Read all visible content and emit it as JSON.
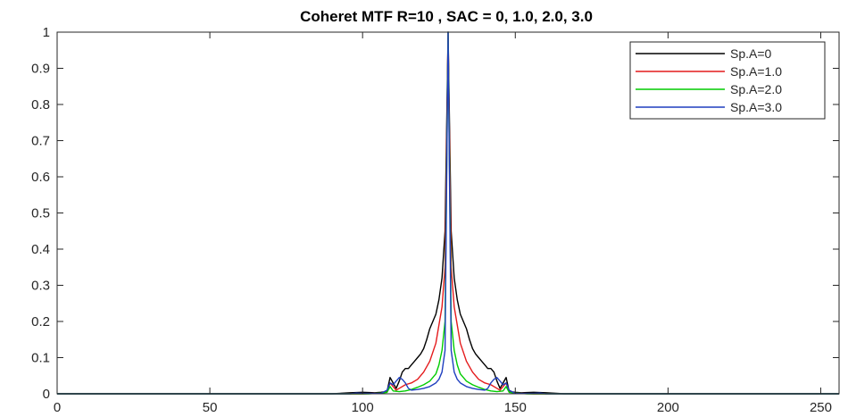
{
  "chart_data": {
    "type": "line",
    "title": "Coheret MTF R=10 , SAC = 0, 1.0, 2.0, 3.0",
    "xlabel": "",
    "ylabel": "",
    "xlim": [
      0,
      256
    ],
    "ylim": [
      0,
      1
    ],
    "xticks": [
      0,
      50,
      100,
      150,
      200,
      250
    ],
    "yticks": [
      0,
      0.1,
      0.2,
      0.3,
      0.4,
      0.5,
      0.6,
      0.7,
      0.8,
      0.9,
      1
    ],
    "xtick_labels": [
      "0",
      "50",
      "100",
      "150",
      "200",
      "250"
    ],
    "ytick_labels": [
      "0",
      "0.1",
      "0.2",
      "0.3",
      "0.4",
      "0.5",
      "0.6",
      "0.7",
      "0.8",
      "0.9",
      "1"
    ],
    "grid": false,
    "legend_position": "top-right",
    "series": [
      {
        "name": "Sp.A=0",
        "color": "#000000",
        "points": [
          [
            0,
            0
          ],
          [
            90,
            0
          ],
          [
            96,
            0.003
          ],
          [
            100,
            0.004
          ],
          [
            104,
            0.003
          ],
          [
            106,
            0.004
          ],
          [
            108,
            0.006
          ],
          [
            109,
            0.045
          ],
          [
            110,
            0.03
          ],
          [
            111,
            0.015
          ],
          [
            112,
            0.035
          ],
          [
            113,
            0.06
          ],
          [
            114,
            0.07
          ],
          [
            115,
            0.07
          ],
          [
            116,
            0.08
          ],
          [
            117,
            0.09
          ],
          [
            118,
            0.1
          ],
          [
            119,
            0.11
          ],
          [
            120,
            0.125
          ],
          [
            121,
            0.15
          ],
          [
            122,
            0.18
          ],
          [
            123,
            0.2
          ],
          [
            124,
            0.22
          ],
          [
            125,
            0.26
          ],
          [
            126,
            0.32
          ],
          [
            127,
            0.45
          ],
          [
            128,
            1.0
          ],
          [
            129,
            0.45
          ],
          [
            130,
            0.32
          ],
          [
            131,
            0.26
          ],
          [
            132,
            0.22
          ],
          [
            133,
            0.2
          ],
          [
            134,
            0.18
          ],
          [
            135,
            0.15
          ],
          [
            136,
            0.125
          ],
          [
            137,
            0.11
          ],
          [
            138,
            0.1
          ],
          [
            139,
            0.09
          ],
          [
            140,
            0.08
          ],
          [
            141,
            0.07
          ],
          [
            142,
            0.07
          ],
          [
            143,
            0.06
          ],
          [
            144,
            0.035
          ],
          [
            145,
            0.015
          ],
          [
            146,
            0.03
          ],
          [
            147,
            0.045
          ],
          [
            148,
            0.006
          ],
          [
            150,
            0.004
          ],
          [
            152,
            0.003
          ],
          [
            156,
            0.004
          ],
          [
            160,
            0.003
          ],
          [
            166,
            0
          ],
          [
            256,
            0
          ]
        ]
      },
      {
        "name": "Sp.A=1.0",
        "color": "#e41a1c",
        "points": [
          [
            0,
            0
          ],
          [
            100,
            0
          ],
          [
            106,
            0.002
          ],
          [
            108,
            0.005
          ],
          [
            109,
            0.03
          ],
          [
            110,
            0.02
          ],
          [
            111,
            0.01
          ],
          [
            112,
            0.015
          ],
          [
            114,
            0.025
          ],
          [
            116,
            0.03
          ],
          [
            118,
            0.04
          ],
          [
            120,
            0.06
          ],
          [
            122,
            0.09
          ],
          [
            124,
            0.14
          ],
          [
            125,
            0.19
          ],
          [
            126,
            0.24
          ],
          [
            127,
            0.35
          ],
          [
            128,
            1.0
          ],
          [
            129,
            0.35
          ],
          [
            130,
            0.24
          ],
          [
            131,
            0.19
          ],
          [
            132,
            0.14
          ],
          [
            134,
            0.09
          ],
          [
            136,
            0.06
          ],
          [
            138,
            0.04
          ],
          [
            140,
            0.03
          ],
          [
            142,
            0.025
          ],
          [
            144,
            0.015
          ],
          [
            145,
            0.01
          ],
          [
            146,
            0.02
          ],
          [
            147,
            0.03
          ],
          [
            148,
            0.005
          ],
          [
            150,
            0.002
          ],
          [
            156,
            0
          ],
          [
            256,
            0
          ]
        ]
      },
      {
        "name": "Sp.A=2.0",
        "color": "#00cc00",
        "points": [
          [
            0,
            0
          ],
          [
            102,
            0
          ],
          [
            106,
            0.002
          ],
          [
            108,
            0.004
          ],
          [
            109,
            0.02
          ],
          [
            110,
            0.008
          ],
          [
            112,
            0.006
          ],
          [
            114,
            0.008
          ],
          [
            116,
            0.012
          ],
          [
            118,
            0.018
          ],
          [
            120,
            0.025
          ],
          [
            122,
            0.035
          ],
          [
            124,
            0.055
          ],
          [
            125,
            0.08
          ],
          [
            126,
            0.12
          ],
          [
            127,
            0.2
          ],
          [
            128,
            1.0
          ],
          [
            129,
            0.2
          ],
          [
            130,
            0.12
          ],
          [
            131,
            0.08
          ],
          [
            132,
            0.055
          ],
          [
            134,
            0.035
          ],
          [
            136,
            0.025
          ],
          [
            138,
            0.018
          ],
          [
            140,
            0.012
          ],
          [
            142,
            0.008
          ],
          [
            144,
            0.006
          ],
          [
            146,
            0.008
          ],
          [
            147,
            0.02
          ],
          [
            148,
            0.004
          ],
          [
            150,
            0.002
          ],
          [
            154,
            0
          ],
          [
            256,
            0
          ]
        ]
      },
      {
        "name": "Sp.A=3.0",
        "color": "#1f3fbf",
        "points": [
          [
            0,
            0
          ],
          [
            96,
            0
          ],
          [
            98,
            0.002
          ],
          [
            100,
            0.001
          ],
          [
            106,
            0.001
          ],
          [
            108,
            0.01
          ],
          [
            109,
            0.03
          ],
          [
            110,
            0.025
          ],
          [
            111,
            0.035
          ],
          [
            112,
            0.045
          ],
          [
            113,
            0.04
          ],
          [
            114,
            0.03
          ],
          [
            115,
            0.015
          ],
          [
            116,
            0.01
          ],
          [
            118,
            0.012
          ],
          [
            120,
            0.015
          ],
          [
            122,
            0.02
          ],
          [
            124,
            0.03
          ],
          [
            125,
            0.04
          ],
          [
            126,
            0.06
          ],
          [
            127,
            0.12
          ],
          [
            128,
            1.0
          ],
          [
            129,
            0.12
          ],
          [
            130,
            0.06
          ],
          [
            131,
            0.04
          ],
          [
            132,
            0.03
          ],
          [
            134,
            0.02
          ],
          [
            136,
            0.015
          ],
          [
            138,
            0.012
          ],
          [
            140,
            0.01
          ],
          [
            141,
            0.015
          ],
          [
            142,
            0.03
          ],
          [
            143,
            0.04
          ],
          [
            144,
            0.045
          ],
          [
            145,
            0.035
          ],
          [
            146,
            0.025
          ],
          [
            147,
            0.03
          ],
          [
            148,
            0.01
          ],
          [
            150,
            0.001
          ],
          [
            156,
            0.001
          ],
          [
            158,
            0.002
          ],
          [
            160,
            0
          ],
          [
            256,
            0
          ]
        ]
      }
    ]
  }
}
